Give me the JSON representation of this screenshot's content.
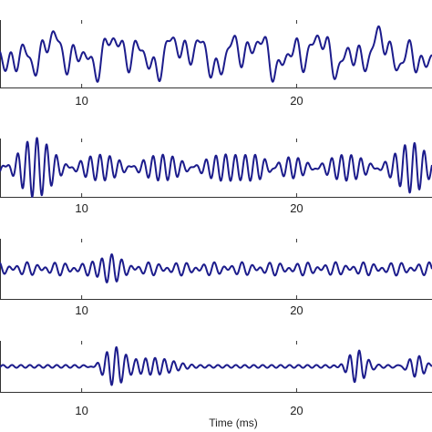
{
  "chart_data": {
    "type": "line",
    "xlabel": "Time (ms)",
    "xlim": [
      6.2,
      26.3
    ],
    "xticks": [
      10,
      20
    ],
    "xtick_labels": [
      "10",
      "20"
    ],
    "line_color": "#1c1c8c",
    "axis_color": "#333333",
    "panels": [
      {
        "ylim": [
          -1.25,
          1.25
        ],
        "components": [
          {
            "freq": 0.72,
            "amp": 0.38,
            "phase": 0.3
          },
          {
            "freq": 1.35,
            "amp": 0.3,
            "phase": 1.7
          },
          {
            "freq": 2.1,
            "amp": 0.24,
            "phase": 0.9
          },
          {
            "freq": 0.33,
            "amp": 0.32,
            "phase": 2.4
          }
        ],
        "bursts": []
      },
      {
        "ylim": [
          -1.25,
          1.25
        ],
        "components": [
          {
            "freq": 2.05,
            "amp": 0.3,
            "phase": 0.0
          },
          {
            "freq": 2.4,
            "amp": 0.26,
            "phase": 1.2
          }
        ],
        "bursts": [
          {
            "center": 7.8,
            "width": 0.9,
            "amp": 0.75,
            "freq": 2.25
          },
          {
            "center": 18.4,
            "width": 0.9,
            "amp": 0.65,
            "freq": 2.25
          },
          {
            "center": 25.4,
            "width": 0.8,
            "amp": 0.6,
            "freq": 2.25
          }
        ]
      },
      {
        "ylim": [
          -1.25,
          1.25
        ],
        "components": [
          {
            "freq": 2.3,
            "amp": 0.16,
            "phase": 0.5
          },
          {
            "freq": 1.6,
            "amp": 0.12,
            "phase": 2.1
          }
        ],
        "bursts": [
          {
            "center": 11.3,
            "width": 0.6,
            "amp": 0.55,
            "freq": 2.0
          }
        ]
      },
      {
        "ylim": [
          -1.25,
          1.25
        ],
        "components": [
          {
            "freq": 2.4,
            "amp": 0.07,
            "phase": 0.2
          }
        ],
        "bursts": [
          {
            "center": 11.5,
            "width": 0.65,
            "amp": 0.95,
            "freq": 2.25
          },
          {
            "center": 13.3,
            "width": 1.3,
            "amp": 0.35,
            "freq": 2.25
          },
          {
            "center": 22.8,
            "width": 0.55,
            "amp": 0.8,
            "freq": 2.25
          },
          {
            "center": 25.6,
            "width": 0.55,
            "amp": 0.6,
            "freq": 2.25
          }
        ]
      }
    ]
  }
}
